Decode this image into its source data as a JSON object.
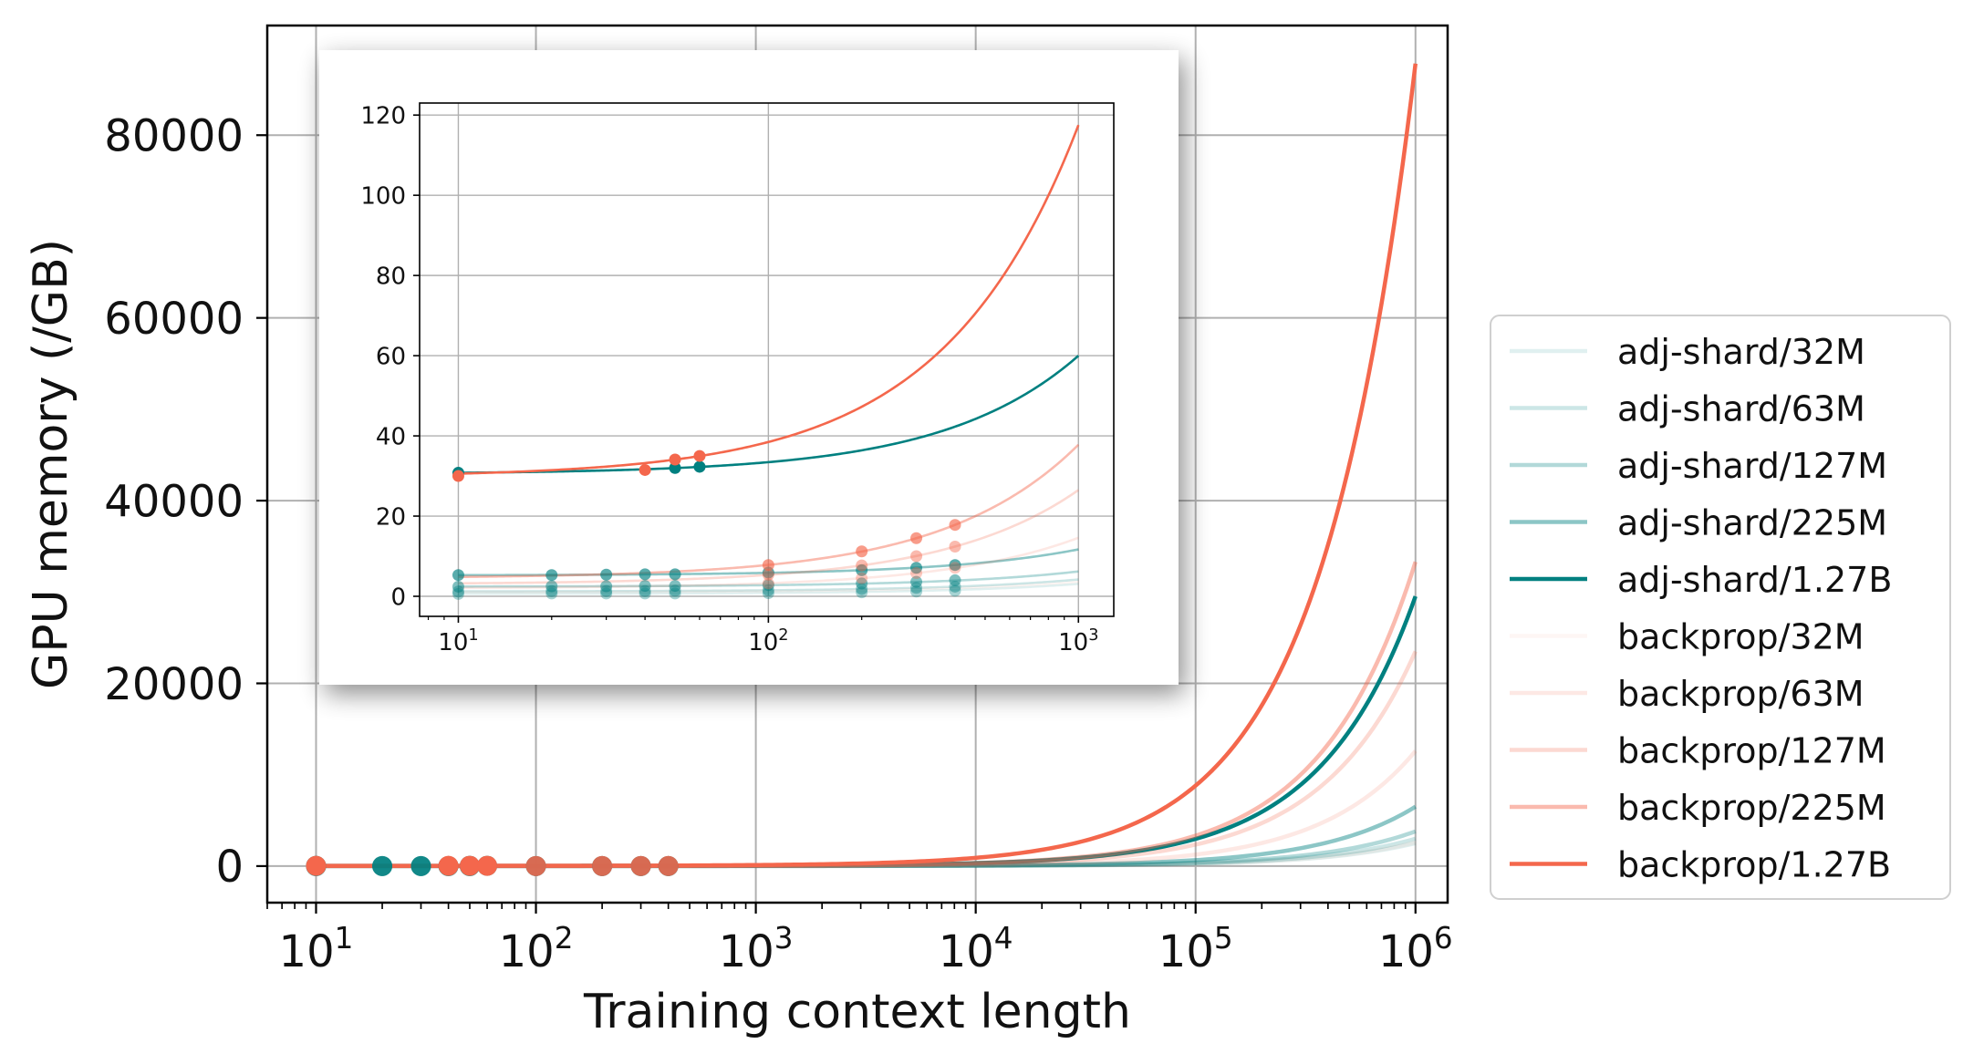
{
  "chart_data": {
    "main": {
      "type": "line",
      "xlabel": "Training context length",
      "ylabel": "GPU memory (/GB)",
      "xscale": "log",
      "xlim": [
        6,
        1400000
      ],
      "ylim": [
        -4000,
        92000
      ],
      "xticks": [
        {
          "value": 10,
          "base": "10",
          "exp": "1"
        },
        {
          "value": 100,
          "base": "10",
          "exp": "2"
        },
        {
          "value": 1000,
          "base": "10",
          "exp": "3"
        },
        {
          "value": 10000,
          "base": "10",
          "exp": "4"
        },
        {
          "value": 100000,
          "base": "10",
          "exp": "5"
        },
        {
          "value": 1000000,
          "base": "10",
          "exp": "6"
        }
      ],
      "yticks": [
        {
          "value": 0,
          "label": "0"
        },
        {
          "value": 20000,
          "label": "20000"
        },
        {
          "value": 40000,
          "label": "40000"
        },
        {
          "value": 60000,
          "label": "60000"
        },
        {
          "value": 80000,
          "label": "80000"
        }
      ],
      "grid": true,
      "legend_position": "outside-right"
    },
    "inset": {
      "type": "line",
      "xscale": "log",
      "xlim": [
        7.5,
        1300
      ],
      "ylim": [
        -5,
        123
      ],
      "xticks": [
        {
          "value": 10,
          "base": "10",
          "exp": "1"
        },
        {
          "value": 100,
          "base": "10",
          "exp": "2"
        },
        {
          "value": 1000,
          "base": "10",
          "exp": "3"
        }
      ],
      "yticks": [
        {
          "value": 0,
          "label": "0"
        },
        {
          "value": 20,
          "label": "20"
        },
        {
          "value": 40,
          "label": "40"
        },
        {
          "value": 60,
          "label": "60"
        },
        {
          "value": 80,
          "label": "80"
        },
        {
          "value": 100,
          "label": "100"
        },
        {
          "value": 120,
          "label": "120"
        }
      ],
      "grid": true
    },
    "series": [
      {
        "name": "adj-shard/32M",
        "color": "#008080",
        "opacity": 0.12,
        "a": 0.6,
        "b": 0.0025,
        "points": [
          [
            10,
            0.6
          ],
          [
            20,
            0.7
          ],
          [
            30,
            0.7
          ],
          [
            40,
            0.7
          ],
          [
            50,
            0.7
          ],
          [
            100,
            0.8
          ],
          [
            200,
            1.0
          ],
          [
            300,
            1.2
          ],
          [
            400,
            1.4
          ]
        ]
      },
      {
        "name": "adj-shard/63M",
        "color": "#008080",
        "opacity": 0.2,
        "a": 1.2,
        "b": 0.003,
        "points": [
          [
            10,
            1.2
          ],
          [
            20,
            1.3
          ],
          [
            30,
            1.3
          ],
          [
            40,
            1.3
          ],
          [
            50,
            1.4
          ],
          [
            100,
            1.5
          ],
          [
            200,
            1.8
          ],
          [
            300,
            2.1
          ],
          [
            400,
            2.4
          ]
        ]
      },
      {
        "name": "adj-shard/127M",
        "color": "#008080",
        "opacity": 0.3,
        "a": 2.4,
        "b": 0.0038,
        "points": [
          [
            10,
            2.4
          ],
          [
            20,
            2.5
          ],
          [
            30,
            2.5
          ],
          [
            40,
            2.6
          ],
          [
            50,
            2.6
          ],
          [
            100,
            2.8
          ],
          [
            200,
            3.2
          ],
          [
            300,
            3.6
          ],
          [
            400,
            4.0
          ]
        ]
      },
      {
        "name": "adj-shard/225M",
        "color": "#008080",
        "opacity": 0.45,
        "a": 5.2,
        "b": 0.0065,
        "points": [
          [
            10,
            5.3
          ],
          [
            20,
            5.3
          ],
          [
            30,
            5.4
          ],
          [
            40,
            5.5
          ],
          [
            50,
            5.5
          ],
          [
            100,
            5.9
          ],
          [
            200,
            6.5
          ],
          [
            300,
            7.1
          ],
          [
            400,
            7.8
          ]
        ]
      },
      {
        "name": "adj-shard/1.27B",
        "color": "#008080",
        "opacity": 1.0,
        "a": 30.5,
        "b": 0.0295,
        "points": [
          [
            10,
            30.8
          ],
          [
            50,
            32.0
          ],
          [
            60,
            32.3
          ]
        ]
      },
      {
        "name": "backprop/32M",
        "color": "#F4674C",
        "opacity": 0.06,
        "a": 1.0,
        "b": 0.0026,
        "points": []
      },
      {
        "name": "backprop/63M",
        "color": "#F4674C",
        "opacity": 0.15,
        "a": 2.0,
        "b": 0.0126,
        "points": [
          [
            100,
            3.2
          ],
          [
            200,
            4.5
          ],
          [
            300,
            5.8
          ],
          [
            400,
            7.1
          ]
        ]
      },
      {
        "name": "backprop/127M",
        "color": "#F4674C",
        "opacity": 0.25,
        "a": 3.0,
        "b": 0.0235,
        "points": [
          [
            100,
            5.4
          ],
          [
            200,
            7.7
          ],
          [
            300,
            10.0
          ],
          [
            400,
            12.4
          ]
        ]
      },
      {
        "name": "backprop/225M",
        "color": "#F4674C",
        "opacity": 0.45,
        "a": 4.5,
        "b": 0.0333,
        "points": [
          [
            100,
            7.8
          ],
          [
            200,
            11.2
          ],
          [
            300,
            14.5
          ],
          [
            400,
            17.8
          ]
        ]
      },
      {
        "name": "backprop/1.27B",
        "color": "#F4674C",
        "opacity": 1.0,
        "a": 29.7,
        "b": 0.0878,
        "points": [
          [
            10,
            30.0
          ],
          [
            40,
            31.5
          ],
          [
            50,
            34.1
          ],
          [
            60,
            35.0
          ]
        ]
      }
    ]
  }
}
